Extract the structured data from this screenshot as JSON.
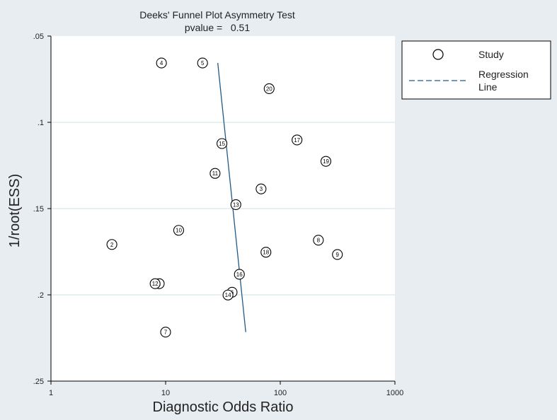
{
  "chart_data": {
    "type": "scatter",
    "title": "Deeks' Funnel Plot Asymmetry Test",
    "subtitle": "pvalue =   0.51",
    "xlabel": "Diagnostic Odds Ratio",
    "ylabel": "1/root(ESS)",
    "x_scale": "log",
    "xlim": [
      1,
      1000
    ],
    "ylim": [
      0.05,
      0.25
    ],
    "y_reversed": true,
    "x_ticks": [
      {
        "value": 1,
        "label": "1"
      },
      {
        "value": 10,
        "label": "10"
      },
      {
        "value": 100,
        "label": "100"
      },
      {
        "value": 1000,
        "label": "1000"
      }
    ],
    "y_ticks": [
      {
        "value": 0.05,
        "label": ".05"
      },
      {
        "value": 0.1,
        "label": ".1"
      },
      {
        "value": 0.15,
        "label": ".15"
      },
      {
        "value": 0.2,
        "label": ".2"
      },
      {
        "value": 0.25,
        "label": ".25"
      }
    ],
    "grid": "horizontal",
    "legend": {
      "placement": "top-right",
      "entries": [
        {
          "label": "Study",
          "symbol": "circle"
        },
        {
          "label_lines": [
            "Regression",
            "Line"
          ],
          "symbol": "dashed-line"
        }
      ]
    },
    "studies": [
      {
        "id": "1",
        "x": 8.8,
        "y": 0.1935
      },
      {
        "id": "2",
        "x": 3.4,
        "y": 0.1708
      },
      {
        "id": "3",
        "x": 68,
        "y": 0.1386
      },
      {
        "id": "4",
        "x": 9.2,
        "y": 0.0656
      },
      {
        "id": "5",
        "x": 21,
        "y": 0.0656
      },
      {
        "id": "6",
        "x": 38,
        "y": 0.1985
      },
      {
        "id": "7",
        "x": 10,
        "y": 0.2216
      },
      {
        "id": "8",
        "x": 215,
        "y": 0.1683
      },
      {
        "id": "9",
        "x": 315,
        "y": 0.1766
      },
      {
        "id": "10",
        "x": 13,
        "y": 0.1626
      },
      {
        "id": "11",
        "x": 27,
        "y": 0.1296
      },
      {
        "id": "12",
        "x": 8.1,
        "y": 0.1935
      },
      {
        "id": "13",
        "x": 41,
        "y": 0.1477
      },
      {
        "id": "14",
        "x": 35,
        "y": 0.2001
      },
      {
        "id": "15",
        "x": 31,
        "y": 0.1123
      },
      {
        "id": "16",
        "x": 44,
        "y": 0.1881
      },
      {
        "id": "17",
        "x": 140,
        "y": 0.1102
      },
      {
        "id": "18",
        "x": 75,
        "y": 0.1753
      },
      {
        "id": "19",
        "x": 250,
        "y": 0.1226
      },
      {
        "id": "20",
        "x": 80,
        "y": 0.0805
      }
    ],
    "regression_line": {
      "start": {
        "x": 28.5,
        "y": 0.0656
      },
      "end": {
        "x": 50,
        "y": 0.2216
      }
    },
    "colors": {
      "background": "#e8edf1",
      "plot_background": "#ffffff",
      "grid": "#dce8ea",
      "regression": "#1f5a8a",
      "marker": "#000000"
    }
  }
}
